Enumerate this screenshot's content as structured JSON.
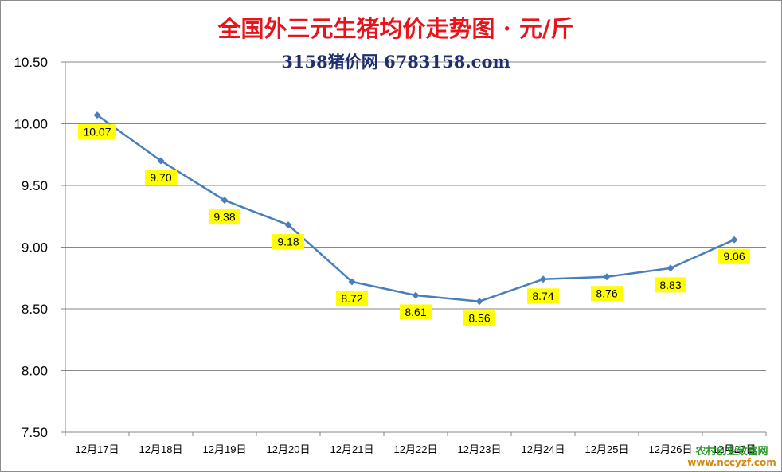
{
  "chart_data": {
    "type": "line",
    "title": "全国外三元生猪均价走势图 · 元/斤",
    "subtitle": "3158猪价网 6783158.com",
    "categories": [
      "12月17日",
      "12月18日",
      "12月19日",
      "12月20日",
      "12月21日",
      "12月22日",
      "12月23日",
      "12月24日",
      "12月25日",
      "12月26日",
      "12月27日"
    ],
    "series": [
      {
        "values": [
          10.07,
          9.7,
          9.38,
          9.18,
          8.72,
          8.61,
          8.56,
          8.74,
          8.76,
          8.83,
          9.06
        ]
      }
    ],
    "data_labels": [
      "10.07",
      "9.70",
      "9.38",
      "9.18",
      "8.72",
      "8.61",
      "8.56",
      "8.74",
      "8.76",
      "8.83",
      "9.06"
    ],
    "ylim": [
      7.5,
      10.5
    ],
    "yticks": [
      "7.50",
      "8.00",
      "8.50",
      "9.00",
      "9.50",
      "10.00",
      "10.50"
    ],
    "ytick_values": [
      7.5,
      8.0,
      8.5,
      9.0,
      9.5,
      10.0,
      10.5
    ],
    "grid": true,
    "legend": "none"
  },
  "watermark": {
    "line1": "农村创业致富网",
    "line2": "www.nccyzf.com"
  },
  "colors": {
    "title": "#e8141b",
    "subtitle": "#1f2e6e",
    "line": "#4a7ebb",
    "label_bg": "#ffff00",
    "grid": "#878787",
    "watermark1": "#2a9a2a",
    "watermark2": "#d8860c"
  }
}
